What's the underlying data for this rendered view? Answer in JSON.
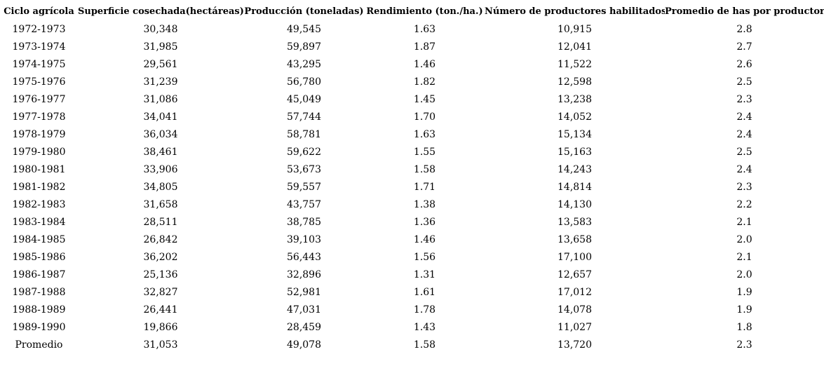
{
  "colors": {
    "text": "#000000",
    "background": "#ffffff"
  },
  "table": {
    "columns": [
      "Ciclo agrícola",
      "Superficie cosechada(hectáreas)",
      "Producción (toneladas)",
      "Rendimiento (ton./ha.)",
      "Número de productores habilitados",
      "Promedio de has por productor"
    ],
    "rows": [
      [
        "1972-1973",
        "30,348",
        "49,545",
        "1.63",
        "10,915",
        "2.8"
      ],
      [
        "1973-1974",
        "31,985",
        "59,897",
        "1.87",
        "12,041",
        "2.7"
      ],
      [
        "1974-1975",
        "29,561",
        "43,295",
        "1.46",
        "11,522",
        "2.6"
      ],
      [
        "1975-1976",
        "31,239",
        "56,780",
        "1.82",
        "12,598",
        "2.5"
      ],
      [
        "1976-1977",
        "31,086",
        "45,049",
        "1.45",
        "13,238",
        "2.3"
      ],
      [
        "1977-1978",
        "34,041",
        "57,744",
        "1.70",
        "14,052",
        "2.4"
      ],
      [
        "1978-1979",
        "36,034",
        "58,781",
        "1.63",
        "15,134",
        "2.4"
      ],
      [
        "1979-1980",
        "38,461",
        "59,622",
        "1.55",
        "15,163",
        "2.5"
      ],
      [
        "1980-1981",
        "33,906",
        "53,673",
        "1.58",
        "14,243",
        "2.4"
      ],
      [
        "1981-1982",
        "34,805",
        "59,557",
        "1.71",
        "14,814",
        "2.3"
      ],
      [
        "1982-1983",
        "31,658",
        "43,757",
        "1.38",
        "14,130",
        "2.2"
      ],
      [
        "1983-1984",
        "28,511",
        "38,785",
        "1.36",
        "13,583",
        "2.1"
      ],
      [
        "1984-1985",
        "26,842",
        "39,103",
        "1.46",
        "13,658",
        "2.0"
      ],
      [
        "1985-1986",
        "36,202",
        "56,443",
        "1.56",
        "17,100",
        "2.1"
      ],
      [
        "1986-1987",
        "25,136",
        "32,896",
        "1.31",
        "12,657",
        "2.0"
      ],
      [
        "1987-1988",
        "32,827",
        "52,981",
        "1.61",
        "17,012",
        "1.9"
      ],
      [
        "1988-1989",
        "26,441",
        "47,031",
        "1.78",
        "14,078",
        "1.9"
      ],
      [
        "1989-1990",
        "19,866",
        "28,459",
        "1.43",
        "11,027",
        "1.8"
      ],
      [
        "Promedio",
        "31,053",
        "49,078",
        "1.58",
        "13,720",
        "2.3"
      ]
    ]
  },
  "chart_data": {
    "type": "table",
    "title": "",
    "columns": [
      "Ciclo agrícola",
      "Superficie cosechada(hectáreas)",
      "Producción (toneladas)",
      "Rendimiento (ton./ha.)",
      "Número de productores habilitados",
      "Promedio de has por productor"
    ],
    "rows": [
      {
        "ciclo": "1972-1973",
        "superficie_ha": 30348,
        "produccion_ton": 49545,
        "rendimiento_ton_ha": 1.63,
        "productores_habilitados": 10915,
        "promedio_has_por_productor": 2.8
      },
      {
        "ciclo": "1973-1974",
        "superficie_ha": 31985,
        "produccion_ton": 59897,
        "rendimiento_ton_ha": 1.87,
        "productores_habilitados": 12041,
        "promedio_has_por_productor": 2.7
      },
      {
        "ciclo": "1974-1975",
        "superficie_ha": 29561,
        "produccion_ton": 43295,
        "rendimiento_ton_ha": 1.46,
        "productores_habilitados": 11522,
        "promedio_has_por_productor": 2.6
      },
      {
        "ciclo": "1975-1976",
        "superficie_ha": 31239,
        "produccion_ton": 56780,
        "rendimiento_ton_ha": 1.82,
        "productores_habilitados": 12598,
        "promedio_has_por_productor": 2.5
      },
      {
        "ciclo": "1976-1977",
        "superficie_ha": 31086,
        "produccion_ton": 45049,
        "rendimiento_ton_ha": 1.45,
        "productores_habilitados": 13238,
        "promedio_has_por_productor": 2.3
      },
      {
        "ciclo": "1977-1978",
        "superficie_ha": 34041,
        "produccion_ton": 57744,
        "rendimiento_ton_ha": 1.7,
        "productores_habilitados": 14052,
        "promedio_has_por_productor": 2.4
      },
      {
        "ciclo": "1978-1979",
        "superficie_ha": 36034,
        "produccion_ton": 58781,
        "rendimiento_ton_ha": 1.63,
        "productores_habilitados": 15134,
        "promedio_has_por_productor": 2.4
      },
      {
        "ciclo": "1979-1980",
        "superficie_ha": 38461,
        "produccion_ton": 59622,
        "rendimiento_ton_ha": 1.55,
        "productores_habilitados": 15163,
        "promedio_has_por_productor": 2.5
      },
      {
        "ciclo": "1980-1981",
        "superficie_ha": 33906,
        "produccion_ton": 53673,
        "rendimiento_ton_ha": 1.58,
        "productores_habilitados": 14243,
        "promedio_has_por_productor": 2.4
      },
      {
        "ciclo": "1981-1982",
        "superficie_ha": 34805,
        "produccion_ton": 59557,
        "rendimiento_ton_ha": 1.71,
        "productores_habilitados": 14814,
        "promedio_has_por_productor": 2.3
      },
      {
        "ciclo": "1982-1983",
        "superficie_ha": 31658,
        "produccion_ton": 43757,
        "rendimiento_ton_ha": 1.38,
        "productores_habilitados": 14130,
        "promedio_has_por_productor": 2.2
      },
      {
        "ciclo": "1983-1984",
        "superficie_ha": 28511,
        "produccion_ton": 38785,
        "rendimiento_ton_ha": 1.36,
        "productores_habilitados": 13583,
        "promedio_has_por_productor": 2.1
      },
      {
        "ciclo": "1984-1985",
        "superficie_ha": 26842,
        "produccion_ton": 39103,
        "rendimiento_ton_ha": 1.46,
        "productores_habilitados": 13658,
        "promedio_has_por_productor": 2.0
      },
      {
        "ciclo": "1985-1986",
        "superficie_ha": 36202,
        "produccion_ton": 56443,
        "rendimiento_ton_ha": 1.56,
        "productores_habilitados": 17100,
        "promedio_has_por_productor": 2.1
      },
      {
        "ciclo": "1986-1987",
        "superficie_ha": 25136,
        "produccion_ton": 32896,
        "rendimiento_ton_ha": 1.31,
        "productores_habilitados": 12657,
        "promedio_has_por_productor": 2.0
      },
      {
        "ciclo": "1987-1988",
        "superficie_ha": 32827,
        "produccion_ton": 52981,
        "rendimiento_ton_ha": 1.61,
        "productores_habilitados": 17012,
        "promedio_has_por_productor": 1.9
      },
      {
        "ciclo": "1988-1989",
        "superficie_ha": 26441,
        "produccion_ton": 47031,
        "rendimiento_ton_ha": 1.78,
        "productores_habilitados": 14078,
        "promedio_has_por_productor": 1.9
      },
      {
        "ciclo": "1989-1990",
        "superficie_ha": 19866,
        "produccion_ton": 28459,
        "rendimiento_ton_ha": 1.43,
        "productores_habilitados": 11027,
        "promedio_has_por_productor": 1.8
      },
      {
        "ciclo": "Promedio",
        "superficie_ha": 31053,
        "produccion_ton": 49078,
        "rendimiento_ton_ha": 1.58,
        "productores_habilitados": 13720,
        "promedio_has_por_productor": 2.3
      }
    ],
    "layout": {
      "grid": false,
      "header_bold": true,
      "cell_alignment": "center"
    }
  }
}
